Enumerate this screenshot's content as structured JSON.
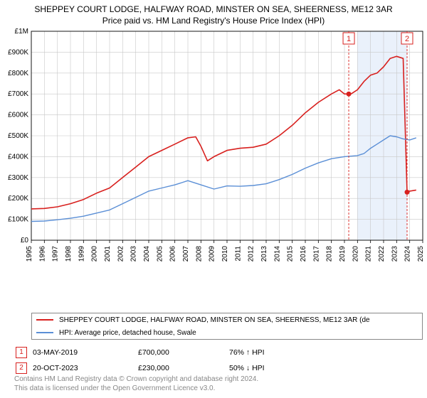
{
  "title_line1": "SHEPPEY COURT LODGE, HALFWAY ROAD, MINSTER ON SEA, SHEERNESS, ME12 3AR",
  "title_line2": "Price paid vs. HM Land Registry's House Price Index (HPI)",
  "chart": {
    "type": "line",
    "background_color": "#ffffff",
    "grid_color": "#c8c8c8",
    "axis_color": "#000000",
    "shaded_band": {
      "x_start": 2020.0,
      "x_end": 2023.8,
      "fill": "#eaf1fb"
    },
    "x": {
      "min": 1995,
      "max": 2025,
      "tick_step": 1,
      "label_fontsize": 10,
      "label_rotation": -90
    },
    "y": {
      "min": 0,
      "max": 1000000,
      "tick_step": 100000,
      "labels": [
        "£0",
        "£100K",
        "£200K",
        "£300K",
        "£400K",
        "£500K",
        "£600K",
        "£700K",
        "£800K",
        "£900K",
        "£1M"
      ],
      "label_fontsize": 10
    },
    "series": [
      {
        "name": "SHEPPEY COURT LODGE, HALFWAY ROAD, MINSTER ON SEA, SHEERNESS, ME12 3AR (de",
        "color": "#d8201e",
        "line_width": 1.6,
        "points": [
          [
            1995,
            150000
          ],
          [
            1996,
            152000
          ],
          [
            1997,
            160000
          ],
          [
            1998,
            175000
          ],
          [
            1999,
            195000
          ],
          [
            2000,
            225000
          ],
          [
            2001,
            250000
          ],
          [
            2002,
            300000
          ],
          [
            2003,
            350000
          ],
          [
            2004,
            400000
          ],
          [
            2005,
            430000
          ],
          [
            2006,
            460000
          ],
          [
            2007,
            490000
          ],
          [
            2007.6,
            495000
          ],
          [
            2008,
            450000
          ],
          [
            2008.5,
            380000
          ],
          [
            2009,
            400000
          ],
          [
            2010,
            430000
          ],
          [
            2011,
            440000
          ],
          [
            2012,
            445000
          ],
          [
            2013,
            460000
          ],
          [
            2014,
            500000
          ],
          [
            2015,
            550000
          ],
          [
            2016,
            610000
          ],
          [
            2017,
            660000
          ],
          [
            2018,
            700000
          ],
          [
            2018.6,
            720000
          ],
          [
            2019,
            700000
          ],
          [
            2019.5,
            700000
          ],
          [
            2020,
            720000
          ],
          [
            2020.5,
            760000
          ],
          [
            2021,
            790000
          ],
          [
            2021.5,
            800000
          ],
          [
            2022,
            830000
          ],
          [
            2022.5,
            870000
          ],
          [
            2023,
            880000
          ],
          [
            2023.5,
            870000
          ],
          [
            2023.8,
            230000
          ],
          [
            2024,
            235000
          ],
          [
            2024.5,
            240000
          ]
        ]
      },
      {
        "name": "HPI: Average price, detached house, Swale",
        "color": "#5b8fd6",
        "line_width": 1.4,
        "points": [
          [
            1995,
            90000
          ],
          [
            1996,
            92000
          ],
          [
            1997,
            98000
          ],
          [
            1998,
            105000
          ],
          [
            1999,
            115000
          ],
          [
            2000,
            130000
          ],
          [
            2001,
            145000
          ],
          [
            2002,
            175000
          ],
          [
            2003,
            205000
          ],
          [
            2004,
            235000
          ],
          [
            2005,
            250000
          ],
          [
            2006,
            265000
          ],
          [
            2007,
            285000
          ],
          [
            2008,
            265000
          ],
          [
            2009,
            245000
          ],
          [
            2010,
            260000
          ],
          [
            2011,
            258000
          ],
          [
            2012,
            262000
          ],
          [
            2013,
            270000
          ],
          [
            2014,
            290000
          ],
          [
            2015,
            315000
          ],
          [
            2016,
            345000
          ],
          [
            2017,
            370000
          ],
          [
            2018,
            390000
          ],
          [
            2019,
            400000
          ],
          [
            2020,
            405000
          ],
          [
            2020.5,
            415000
          ],
          [
            2021,
            440000
          ],
          [
            2021.5,
            460000
          ],
          [
            2022,
            480000
          ],
          [
            2022.5,
            500000
          ],
          [
            2023,
            495000
          ],
          [
            2023.5,
            485000
          ],
          [
            2024,
            480000
          ],
          [
            2024.5,
            490000
          ]
        ]
      }
    ],
    "sale_markers": [
      {
        "n": "1",
        "x": 2019.33,
        "y": 700000,
        "color": "#d8201e"
      },
      {
        "n": "2",
        "x": 2023.8,
        "y": 230000,
        "color": "#d8201e"
      }
    ],
    "top_badges": [
      {
        "n": "1",
        "x": 2019.33,
        "color": "#d8201e"
      },
      {
        "n": "2",
        "x": 2023.8,
        "color": "#d8201e"
      }
    ]
  },
  "legend": {
    "rows": [
      {
        "color": "#d8201e",
        "label": "SHEPPEY COURT LODGE, HALFWAY ROAD, MINSTER ON SEA, SHEERNESS, ME12 3AR (de"
      },
      {
        "color": "#5b8fd6",
        "label": "HPI: Average price, detached house, Swale"
      }
    ]
  },
  "sales_table": {
    "rows": [
      {
        "n": "1",
        "color": "#d8201e",
        "date": "03-MAY-2019",
        "price": "£700,000",
        "pct": "76% ↑ HPI"
      },
      {
        "n": "2",
        "color": "#d8201e",
        "date": "20-OCT-2023",
        "price": "£230,000",
        "pct": "50% ↓ HPI"
      }
    ]
  },
  "footer_line1": "Contains HM Land Registry data © Crown copyright and database right 2024.",
  "footer_line2": "This data is licensed under the Open Government Licence v3.0."
}
